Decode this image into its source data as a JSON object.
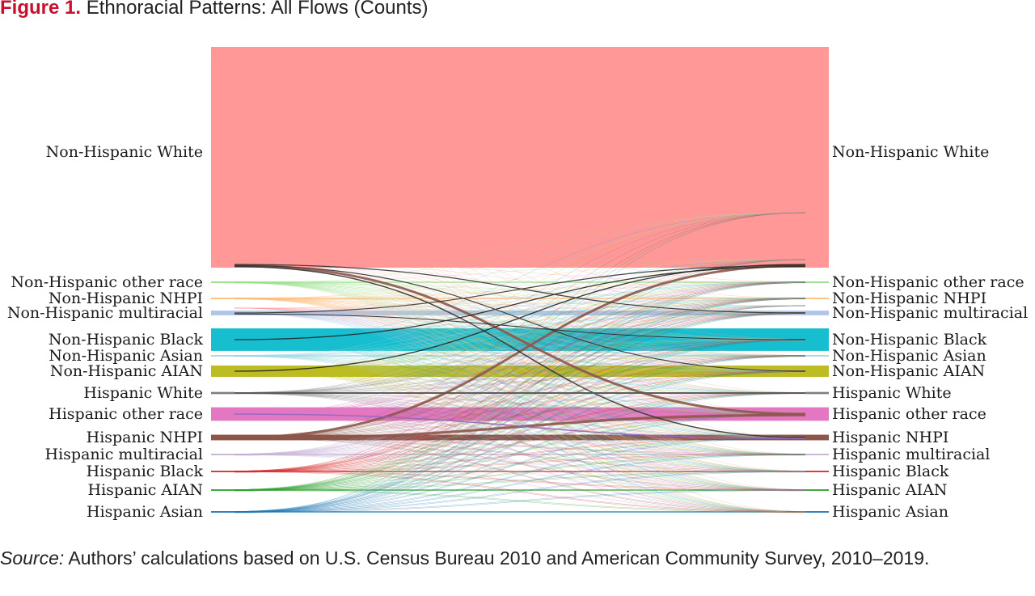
{
  "figure": {
    "number": "Figure 1.",
    "title": "Ethnoracial Patterns: All Flows (Counts)"
  },
  "source": {
    "label": "Source:",
    "text": "Authors’ calculations based on U.S. Census Bureau 2010 and American Community Survey, 2010–2019."
  },
  "chart_data": {
    "type": "sankey",
    "left_axis_label": "",
    "right_axis_label": "",
    "categories": [
      {
        "name": "Non-Hispanic White",
        "color": "#ff9896",
        "relative_size": 100
      },
      {
        "name": "Non-Hispanic other race",
        "color": "#98df8a",
        "relative_size": 0.7
      },
      {
        "name": "Non-Hispanic NHPI",
        "color": "#ffbb78",
        "relative_size": 0.5
      },
      {
        "name": "Non-Hispanic multiracial",
        "color": "#aec7e8",
        "relative_size": 2.2
      },
      {
        "name": "Non-Hispanic Black",
        "color": "#17becf",
        "relative_size": 10.5
      },
      {
        "name": "Non-Hispanic Asian",
        "color": "#9edae5",
        "relative_size": 0.6
      },
      {
        "name": "Non-Hispanic AIAN",
        "color": "#bcbd22",
        "relative_size": 5.3
      },
      {
        "name": "Hispanic White",
        "color": "#7f7f7f",
        "relative_size": 1.0
      },
      {
        "name": "Hispanic other race",
        "color": "#e377c2",
        "relative_size": 6.3
      },
      {
        "name": "Hispanic NHPI",
        "color": "#8c564b",
        "relative_size": 2.6
      },
      {
        "name": "Hispanic multiracial",
        "color": "#c5b0d5",
        "relative_size": 0.6
      },
      {
        "name": "Hispanic Black",
        "color": "#d62728",
        "relative_size": 0.6
      },
      {
        "name": "Hispanic AIAN",
        "color": "#2ca02c",
        "relative_size": 0.6
      },
      {
        "name": "Hispanic Asian",
        "color": "#1f77b4",
        "relative_size": 0.6
      }
    ],
    "prominent_flows": [
      {
        "from": "Non-Hispanic White",
        "to": "Hispanic other race",
        "color": "#8c564b",
        "weight": 3
      },
      {
        "from": "Hispanic NHPI",
        "to": "Non-Hispanic White",
        "color": "#8c564b",
        "weight": 3
      },
      {
        "from": "Hispanic NHPI",
        "to": "Hispanic other race",
        "color": "#8c564b",
        "weight": 3
      },
      {
        "from": "Non-Hispanic White",
        "to": "Hispanic NHPI",
        "color": "#333333",
        "weight": 1.5
      },
      {
        "from": "Non-Hispanic Black",
        "to": "Non-Hispanic White",
        "color": "#222222",
        "weight": 1.3
      },
      {
        "from": "Non-Hispanic AIAN",
        "to": "Non-Hispanic White",
        "color": "#222222",
        "weight": 1.3
      },
      {
        "from": "Non-Hispanic White",
        "to": "Non-Hispanic multiracial",
        "color": "#333333",
        "weight": 1.2
      },
      {
        "from": "Non-Hispanic White",
        "to": "Non-Hispanic AIAN",
        "color": "#333333",
        "weight": 1.2
      },
      {
        "from": "Non-Hispanic multiracial",
        "to": "Non-Hispanic White",
        "color": "#333333",
        "weight": 1.2
      },
      {
        "from": "Hispanic other race",
        "to": "Hispanic NHPI",
        "color": "#9467bd",
        "weight": 1.5
      },
      {
        "from": "Non-Hispanic multiracial",
        "to": "Non-Hispanic Black",
        "color": "#222222",
        "weight": 1
      },
      {
        "from": "Hispanic White",
        "to": "Hispanic White",
        "color": "#555555",
        "weight": 2
      }
    ]
  }
}
